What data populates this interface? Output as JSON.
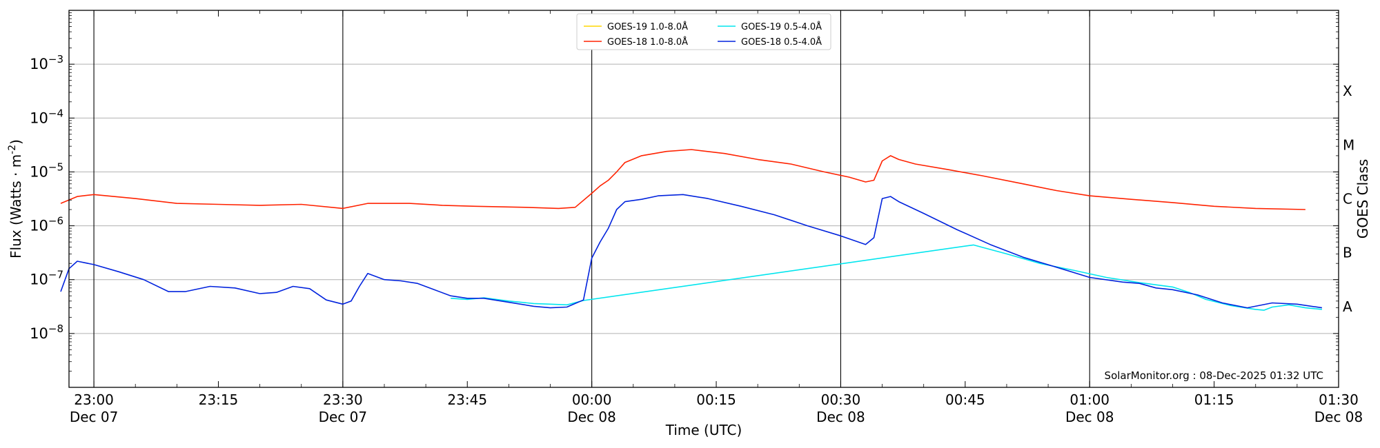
{
  "chart_data": {
    "type": "line",
    "title": "",
    "xlabel": "Time (UTC)",
    "ylabel": "Flux (Watts · m",
    "ylabel_sup": "-2",
    "ylabel_close": ")",
    "right_label": "GOES Class",
    "y_scale": "log",
    "ylim": [
      1e-09,
      0.01
    ],
    "xlim_minutes_from_first_tick": [
      -3,
      150
    ],
    "grid": "horizontal at decades",
    "legend_placement": "top-center",
    "watermark": "SolarMonitor.org : 08-Dec-2025 01:32 UTC",
    "y_ticks": [
      {
        "value": 1e-08,
        "base": "10",
        "exp": "−8"
      },
      {
        "value": 1e-07,
        "base": "10",
        "exp": "−7"
      },
      {
        "value": 1e-06,
        "base": "10",
        "exp": "−6"
      },
      {
        "value": 1e-05,
        "base": "10",
        "exp": "−5"
      },
      {
        "value": 0.0001,
        "base": "10",
        "exp": "−4"
      },
      {
        "value": 0.001,
        "base": "10",
        "exp": "−3"
      }
    ],
    "goes_classes": [
      {
        "label": "A",
        "value": 3.16e-08
      },
      {
        "label": "B",
        "value": 3.16e-07
      },
      {
        "label": "C",
        "value": 3.16e-06
      },
      {
        "label": "M",
        "value": 3.16e-05
      },
      {
        "label": "X",
        "value": 0.000316
      }
    ],
    "x_ticks": [
      {
        "m": 0,
        "time": "23:00",
        "date": "Dec 07",
        "vline": true
      },
      {
        "m": 15,
        "time": "23:15",
        "date": "",
        "vline": false
      },
      {
        "m": 30,
        "time": "23:30",
        "date": "Dec 07",
        "vline": true
      },
      {
        "m": 45,
        "time": "23:45",
        "date": "",
        "vline": false
      },
      {
        "m": 60,
        "time": "00:00",
        "date": "Dec 08",
        "vline": true
      },
      {
        "m": 75,
        "time": "00:15",
        "date": "",
        "vline": false
      },
      {
        "m": 90,
        "time": "00:30",
        "date": "Dec 08",
        "vline": true
      },
      {
        "m": 105,
        "time": "00:45",
        "date": "",
        "vline": false
      },
      {
        "m": 120,
        "time": "01:00",
        "date": "Dec 08",
        "vline": true
      },
      {
        "m": 135,
        "time": "01:15",
        "date": "",
        "vline": false
      },
      {
        "m": 150,
        "time": "01:30",
        "date": "Dec 08",
        "vline": false
      }
    ],
    "legend": [
      {
        "name": "GOES-19 1.0-8.0Å",
        "color": "#ffd700"
      },
      {
        "name": "GOES-19 0.5-4.0Å",
        "color": "#00e5ee"
      },
      {
        "name": "GOES-18 1.0-8.0Å",
        "color": "#ff2200"
      },
      {
        "name": "GOES-18 0.5-4.0Å",
        "color": "#0022dd"
      }
    ],
    "series": [
      {
        "name": "GOES-18 1.0-8.0Å",
        "color": "#ff2200",
        "points": [
          [
            -4,
            2.6e-06
          ],
          [
            -2,
            3.5e-06
          ],
          [
            0,
            3.8e-06
          ],
          [
            5,
            3.2e-06
          ],
          [
            10,
            2.6e-06
          ],
          [
            15,
            2.5e-06
          ],
          [
            20,
            2.4e-06
          ],
          [
            25,
            2.5e-06
          ],
          [
            30,
            2.1e-06
          ],
          [
            33,
            2.6e-06
          ],
          [
            38,
            2.6e-06
          ],
          [
            42,
            2.4e-06
          ],
          [
            46,
            2.3e-06
          ],
          [
            52,
            2.2e-06
          ],
          [
            56,
            2.1e-06
          ],
          [
            58,
            2.2e-06
          ],
          [
            60,
            4e-06
          ],
          [
            61,
            5.5e-06
          ],
          [
            62,
            7e-06
          ],
          [
            63,
            1e-05
          ],
          [
            64,
            1.5e-05
          ],
          [
            66,
            2e-05
          ],
          [
            69,
            2.4e-05
          ],
          [
            72,
            2.6e-05
          ],
          [
            76,
            2.2e-05
          ],
          [
            80,
            1.7e-05
          ],
          [
            84,
            1.4e-05
          ],
          [
            88,
            1e-05
          ],
          [
            91,
            8e-06
          ],
          [
            93,
            6.5e-06
          ],
          [
            94,
            7e-06
          ],
          [
            95,
            1.6e-05
          ],
          [
            96,
            2e-05
          ],
          [
            97,
            1.7e-05
          ],
          [
            99,
            1.4e-05
          ],
          [
            103,
            1.1e-05
          ],
          [
            107,
            8.5e-06
          ],
          [
            112,
            6e-06
          ],
          [
            116,
            4.5e-06
          ],
          [
            120,
            3.6e-06
          ],
          [
            125,
            3.1e-06
          ],
          [
            130,
            2.7e-06
          ],
          [
            135,
            2.3e-06
          ],
          [
            140,
            2.1e-06
          ],
          [
            146,
            2e-06
          ]
        ]
      },
      {
        "name": "GOES-19 0.5-4.0Å",
        "color": "#00e5ee",
        "points": [
          [
            43,
            4.5e-08
          ],
          [
            45,
            4.3e-08
          ],
          [
            47,
            4.6e-08
          ],
          [
            50,
            4e-08
          ],
          [
            53,
            3.6e-08
          ],
          [
            55,
            3.5e-08
          ],
          [
            57,
            3.4e-08
          ],
          [
            59,
            4.1e-08
          ],
          [
            106,
            4.4e-07
          ],
          [
            110,
            3e-07
          ],
          [
            114,
            2e-07
          ],
          [
            118,
            1.5e-07
          ],
          [
            122,
            1.1e-07
          ],
          [
            126,
            8.8e-08
          ],
          [
            130,
            7.3e-08
          ],
          [
            132,
            5.8e-08
          ],
          [
            134,
            4.3e-08
          ],
          [
            137,
            3.3e-08
          ],
          [
            140,
            2.8e-08
          ],
          [
            141,
            2.7e-08
          ],
          [
            142,
            3.1e-08
          ],
          [
            144,
            3.4e-08
          ],
          [
            146,
            3e-08
          ],
          [
            148,
            2.8e-08
          ]
        ]
      },
      {
        "name": "GOES-18 0.5-4.0Å",
        "color": "#0022dd",
        "points": [
          [
            -4,
            6e-08
          ],
          [
            -3,
            1.6e-07
          ],
          [
            -2,
            2.2e-07
          ],
          [
            0,
            1.9e-07
          ],
          [
            3,
            1.4e-07
          ],
          [
            6,
            1e-07
          ],
          [
            9,
            6e-08
          ],
          [
            11,
            6e-08
          ],
          [
            14,
            7.5e-08
          ],
          [
            17,
            7e-08
          ],
          [
            20,
            5.5e-08
          ],
          [
            22,
            5.8e-08
          ],
          [
            24,
            7.5e-08
          ],
          [
            26,
            6.8e-08
          ],
          [
            28,
            4.2e-08
          ],
          [
            30,
            3.5e-08
          ],
          [
            31,
            4e-08
          ],
          [
            32,
            7.5e-08
          ],
          [
            33,
            1.3e-07
          ],
          [
            35,
            1e-07
          ],
          [
            37,
            9.5e-08
          ],
          [
            39,
            8.5e-08
          ],
          [
            41,
            6.5e-08
          ],
          [
            43,
            5e-08
          ],
          [
            45,
            4.5e-08
          ],
          [
            47,
            4.5e-08
          ],
          [
            50,
            3.8e-08
          ],
          [
            53,
            3.2e-08
          ],
          [
            55,
            3e-08
          ],
          [
            57,
            3.1e-08
          ],
          [
            59,
            4.2e-08
          ],
          [
            60,
            2.5e-07
          ],
          [
            61,
            5e-07
          ],
          [
            62,
            9e-07
          ],
          [
            63,
            2e-06
          ],
          [
            64,
            2.8e-06
          ],
          [
            66,
            3.1e-06
          ],
          [
            68,
            3.6e-06
          ],
          [
            71,
            3.8e-06
          ],
          [
            74,
            3.2e-06
          ],
          [
            78,
            2.3e-06
          ],
          [
            82,
            1.6e-06
          ],
          [
            86,
            1e-06
          ],
          [
            90,
            6.5e-07
          ],
          [
            93,
            4.5e-07
          ],
          [
            94,
            6e-07
          ],
          [
            95,
            3.2e-06
          ],
          [
            96,
            3.5e-06
          ],
          [
            97,
            2.8e-06
          ],
          [
            100,
            1.7e-06
          ],
          [
            104,
            8.5e-07
          ],
          [
            108,
            4.5e-07
          ],
          [
            112,
            2.6e-07
          ],
          [
            116,
            1.7e-07
          ],
          [
            120,
            1.1e-07
          ],
          [
            124,
            9e-08
          ],
          [
            126,
            8.5e-08
          ],
          [
            128,
            7e-08
          ],
          [
            130,
            6.5e-08
          ],
          [
            133,
            5.2e-08
          ],
          [
            136,
            3.7e-08
          ],
          [
            139,
            3e-08
          ],
          [
            142,
            3.7e-08
          ],
          [
            145,
            3.5e-08
          ],
          [
            148,
            3e-08
          ]
        ]
      }
    ]
  }
}
